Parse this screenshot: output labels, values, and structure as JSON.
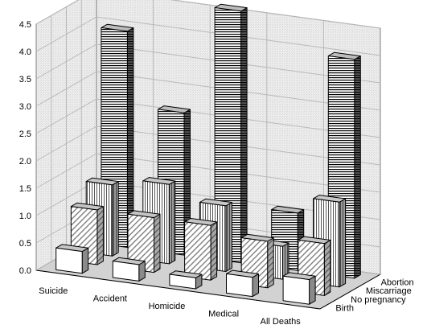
{
  "chart_data": {
    "type": "bar",
    "subtype": "3d-column",
    "categories": [
      "Suicide",
      "Accident",
      "Homicide",
      "Medical",
      "All Deaths"
    ],
    "series": [
      {
        "name": "Birth",
        "values": [
          0.4,
          0.3,
          0.2,
          0.35,
          0.45
        ],
        "pattern": "plain"
      },
      {
        "name": "No pregnancy",
        "values": [
          1.0,
          1.0,
          1.0,
          0.85,
          0.95
        ],
        "pattern": "diagonal"
      },
      {
        "name": "Miscarriage",
        "values": [
          1.3,
          1.45,
          1.2,
          0.6,
          1.55
        ],
        "pattern": "vertical"
      },
      {
        "name": "Abortion",
        "values": [
          3.95,
          2.6,
          4.6,
          1.05,
          4.0
        ],
        "pattern": "horizontal"
      }
    ],
    "y_ticks": [
      "0.0",
      "0.5",
      "1.0",
      "1.5",
      "2.0",
      "2.5",
      "3.0",
      "3.5",
      "4.0",
      "4.5"
    ],
    "ylim": [
      0,
      4.5
    ],
    "grid": true,
    "legend_position": "depth-axis-right",
    "colors": {
      "bar_face": "#ffffff",
      "bar_outline": "#000000",
      "pattern_ink": "#000000",
      "wall": "#e9e9e9",
      "grid": "#b9b9b9"
    }
  }
}
